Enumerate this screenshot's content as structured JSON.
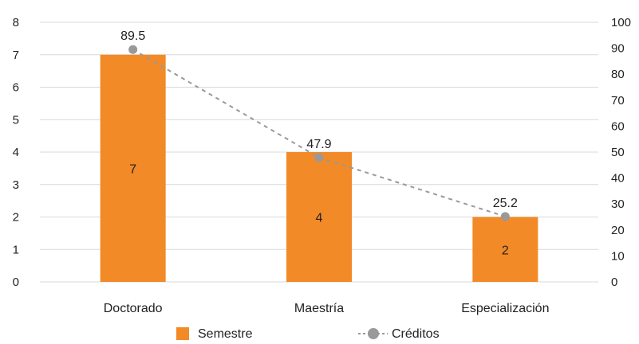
{
  "chart_data": {
    "type": "bar",
    "categories": [
      "Doctorado",
      "Maestría",
      "Especialización"
    ],
    "series": [
      {
        "name": "Semestre",
        "type": "bar",
        "axis": "left",
        "values": [
          7,
          4,
          2
        ],
        "color": "#F28A27"
      },
      {
        "name": "Créditos",
        "type": "line",
        "axis": "right",
        "values": [
          89.5,
          47.9,
          25.2
        ],
        "color": "#999999",
        "line_style": "dashed"
      }
    ],
    "ylim_left": [
      0,
      8
    ],
    "yticks_left": [
      0,
      1,
      2,
      3,
      4,
      5,
      6,
      7,
      8
    ],
    "ylim_right": [
      0,
      100
    ],
    "yticks_right": [
      0,
      10,
      20,
      30,
      40,
      50,
      60,
      70,
      80,
      90,
      100
    ],
    "grid": true,
    "legend_position": "bottom"
  }
}
